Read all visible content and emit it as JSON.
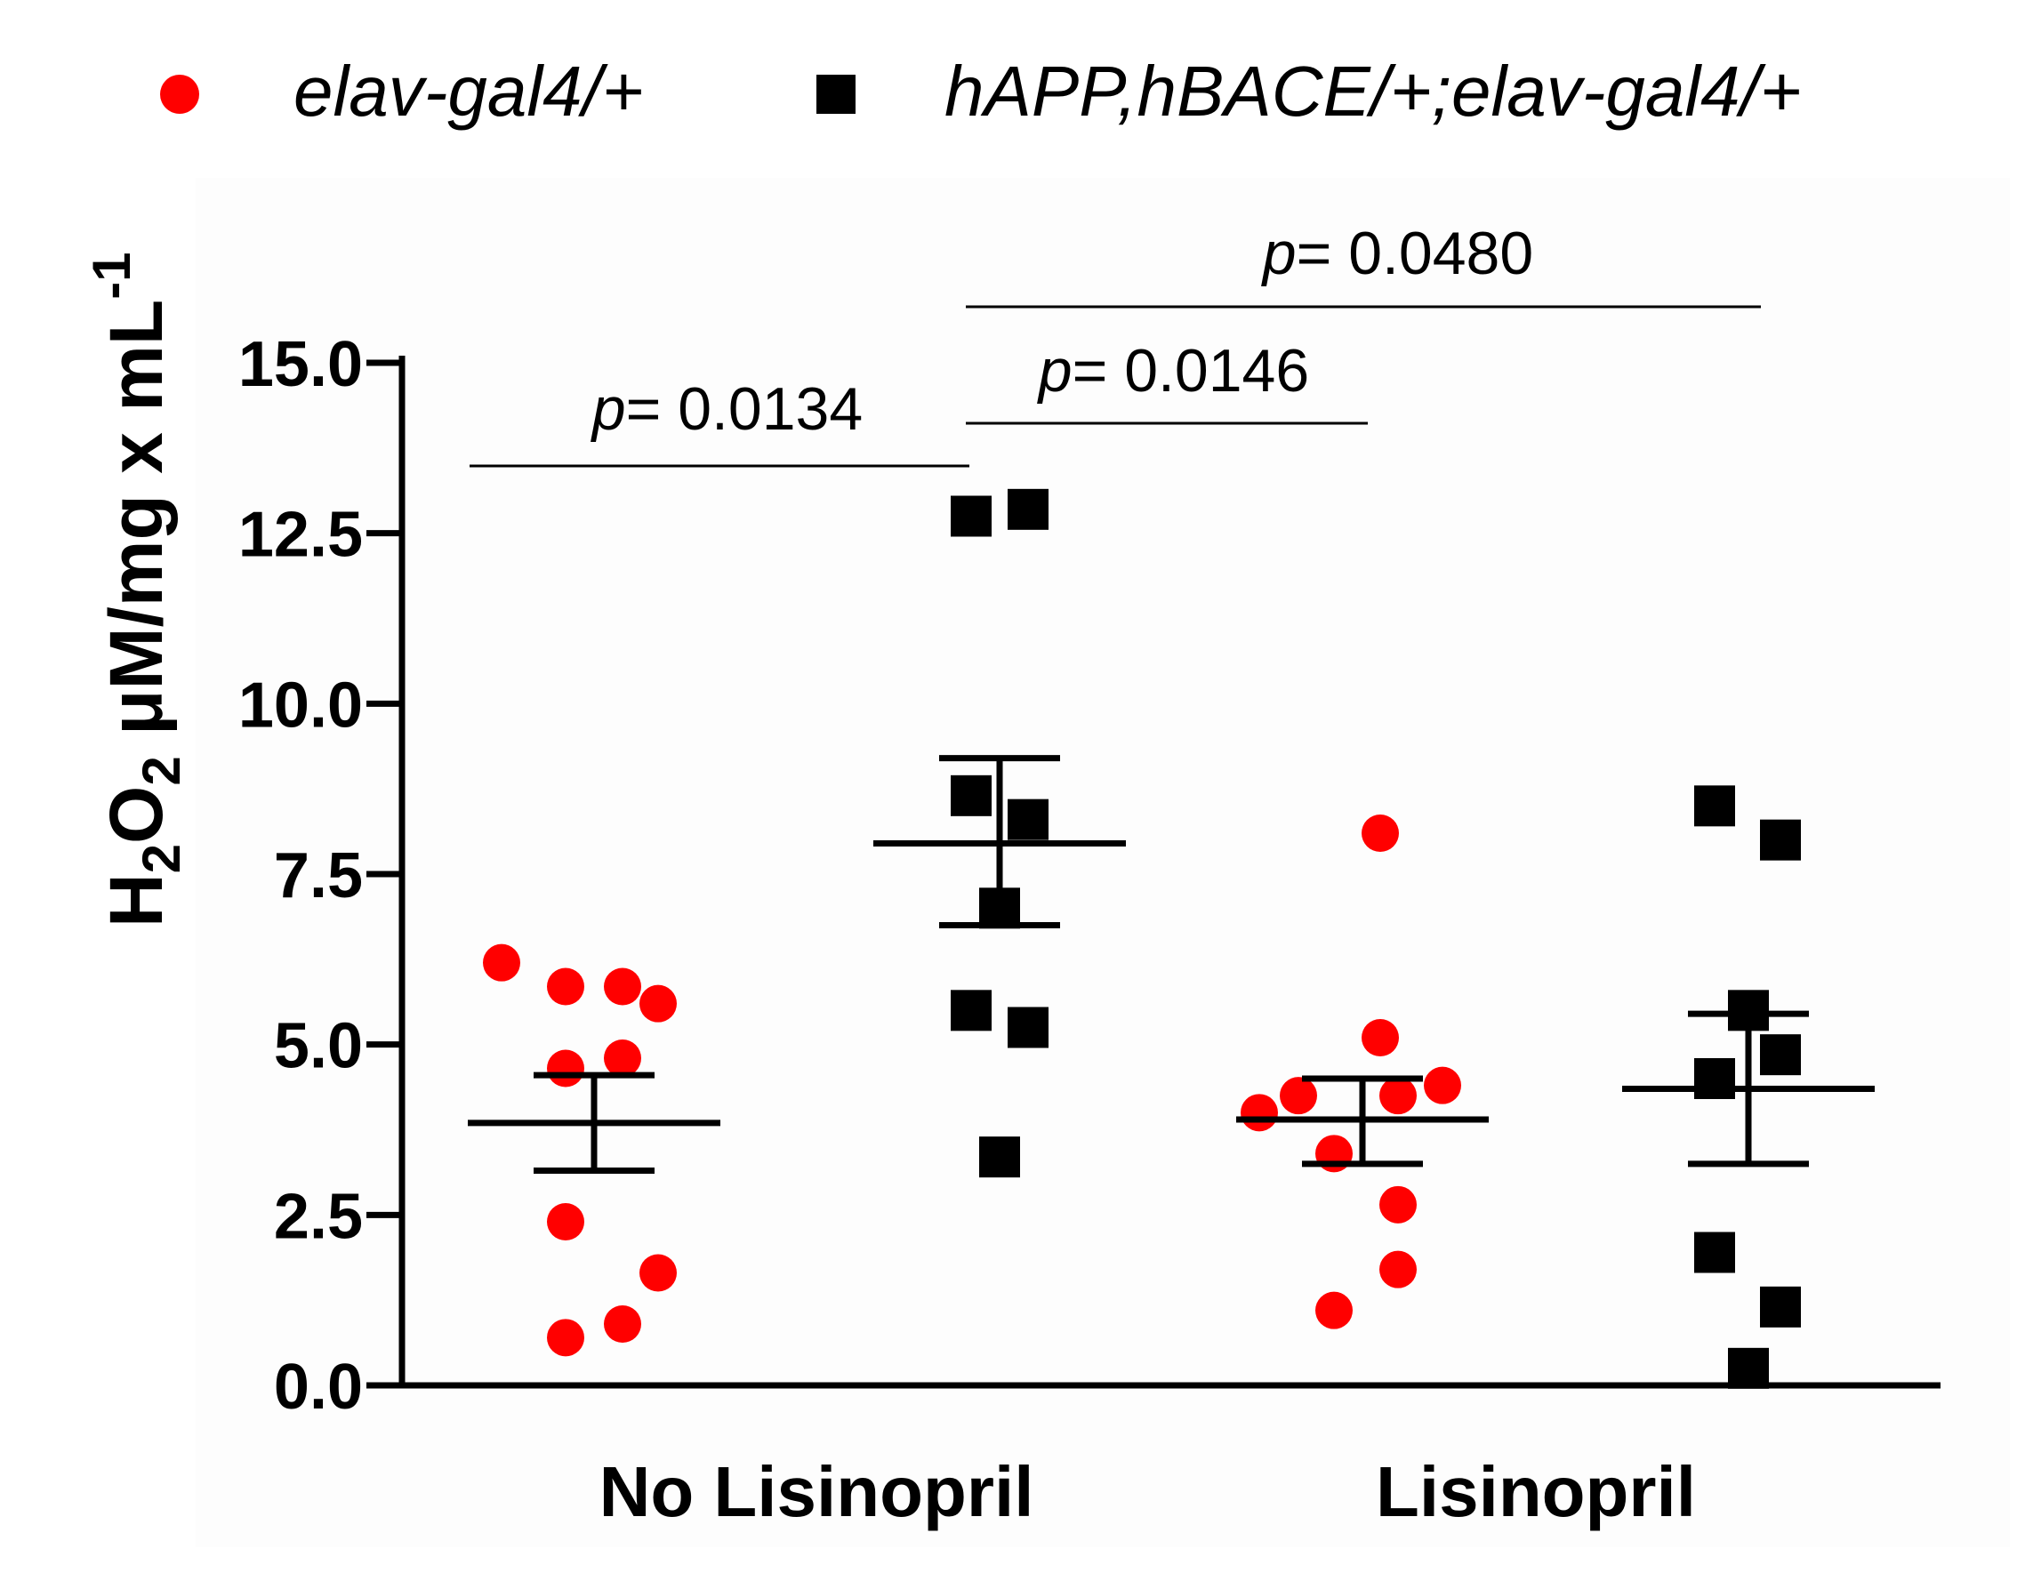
{
  "chart_data": {
    "type": "scatter",
    "legend": [
      {
        "name": "elav-gal4/+",
        "marker": "circle",
        "color": "#ff0000"
      },
      {
        "name": "hAPP,hBACE/+;elav-gal4/+",
        "marker": "square",
        "color": "#000000"
      }
    ],
    "ylabel": {
      "main": "H",
      "sub1": "2",
      "mid": "O",
      "sub2": "2",
      "rest": " μM/mg x mL",
      "sup": "-1"
    },
    "ylim": [
      0,
      15
    ],
    "yticks": [
      "0.0",
      "2.5",
      "5.0",
      "7.5",
      "10.0",
      "12.5",
      "15.0"
    ],
    "ytick_values": [
      0,
      2.5,
      5,
      7.5,
      10,
      12.5,
      15
    ],
    "categories": [
      "No Lisinopril",
      "Lisinopril"
    ],
    "series": [
      {
        "name": "elav-gal4/+",
        "marker": "circle",
        "color": "#ff0000",
        "groups": [
          {
            "category": "No Lisinopril",
            "values": [
              6.2,
              5.85,
              5.85,
              5.6,
              4.65,
              4.8,
              2.4,
              1.65,
              0.7,
              0.9
            ],
            "mean": 3.85,
            "sem_low": 3.15,
            "sem_high": 4.55
          },
          {
            "category": "Lisinopril",
            "values": [
              8.1,
              5.1,
              4.4,
              4.25,
              4.0,
              4.25,
              3.4,
              2.65,
              1.7,
              1.1
            ],
            "mean": 3.9,
            "sem_low": 3.25,
            "sem_high": 4.5
          }
        ]
      },
      {
        "name": "hAPP,hBACE/+;elav-gal4/+",
        "marker": "square",
        "color": "#000000",
        "groups": [
          {
            "category": "No Lisinopril",
            "values": [
              12.75,
              12.85,
              8.65,
              8.3,
              7.0,
              5.5,
              5.25,
              3.35
            ],
            "mean": 7.95,
            "sem_low": 6.75,
            "sem_high": 9.2
          },
          {
            "category": "Lisinopril",
            "values": [
              8.5,
              8.0,
              5.5,
              4.85,
              4.5,
              1.95,
              1.15,
              0.25
            ],
            "mean": 4.35,
            "sem_low": 3.25,
            "sem_high": 5.45
          }
        ]
      }
    ],
    "annotations": [
      {
        "label": "p",
        "value": "= 0.0134",
        "from": "No Lisinopril / elav-gal4/+",
        "to": "No Lisinopril / hAPP,hBACE/+;elav-gal4/+"
      },
      {
        "label": "p",
        "value": "= 0.0146",
        "from": "No Lisinopril / hAPP,hBACE/+;elav-gal4/+",
        "to": "Lisinopril / elav-gal4/+"
      },
      {
        "label": "p",
        "value": "= 0.0480",
        "from": "No Lisinopril / hAPP,hBACE/+;elav-gal4/+",
        "to": "Lisinopril / hAPP,hBACE/+;elav-gal4/+"
      }
    ]
  }
}
